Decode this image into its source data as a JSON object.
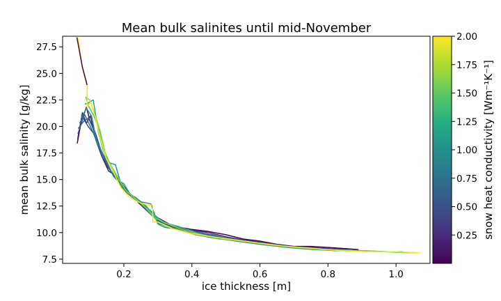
{
  "chart_data": {
    "type": "line",
    "title": "Mean bulk salinites until mid-November",
    "xlabel": "ice thickness [m]",
    "ylabel": "mean bulk salinity [g/kg]",
    "xlim": [
      0.02,
      1.1
    ],
    "ylim": [
      7.1,
      28.5
    ],
    "xticks": [
      0.2,
      0.4,
      0.6,
      0.8,
      1.0
    ],
    "xtick_labels": [
      "0.2",
      "0.4",
      "0.6",
      "0.8",
      "1.0"
    ],
    "yticks": [
      7.5,
      10.0,
      12.5,
      15.0,
      17.5,
      20.0,
      22.5,
      25.0,
      27.5
    ],
    "ytick_labels": [
      "7.5",
      "10.0",
      "12.5",
      "15.0",
      "17.5",
      "20.0",
      "22.5",
      "25.0",
      "27.5"
    ],
    "grid": false,
    "colorbar": {
      "label": "snow heat conductivity [Wm⁻¹K⁻¹]",
      "colormap": "viridis",
      "range": [
        0.0,
        2.0
      ],
      "ticks": [
        0.25,
        0.5,
        0.75,
        1.0,
        1.25,
        1.5,
        1.75,
        2.0
      ],
      "tick_labels": [
        "0.25",
        "0.50",
        "0.75",
        "1.00",
        "1.25",
        "1.50",
        "1.75",
        "2.00"
      ]
    },
    "series": [
      {
        "conductivity": 0.05,
        "color": "#440154",
        "x": [
          0.063,
          0.075,
          0.09,
          0.1,
          0.115,
          0.13,
          0.15,
          0.17,
          0.19,
          0.22,
          0.25,
          0.3,
          0.35,
          0.4,
          0.45,
          0.5,
          0.55,
          0.6,
          0.65,
          0.7,
          0.75,
          0.8,
          0.85,
          0.89
        ],
        "y": [
          18.4,
          20.5,
          21.8,
          20.6,
          19.5,
          18.0,
          16.3,
          15.4,
          14.8,
          13.5,
          12.6,
          11.2,
          10.6,
          10.3,
          10.1,
          9.8,
          9.4,
          9.2,
          8.9,
          8.7,
          8.7,
          8.6,
          8.5,
          8.4
        ]
      },
      {
        "conductivity": 0.15,
        "color": "#482475",
        "x": [
          0.064,
          0.078,
          0.09,
          0.102,
          0.118,
          0.135,
          0.155,
          0.175,
          0.2,
          0.23,
          0.26,
          0.3,
          0.35,
          0.4,
          0.45,
          0.5,
          0.55,
          0.6,
          0.65,
          0.7,
          0.75,
          0.8,
          0.86
        ],
        "y": [
          18.8,
          21.3,
          20.3,
          21.0,
          18.7,
          17.2,
          15.8,
          15.4,
          14.0,
          13.2,
          12.4,
          11.4,
          10.5,
          10.2,
          10.0,
          9.6,
          9.3,
          9.1,
          8.8,
          8.6,
          8.6,
          8.5,
          8.4
        ]
      },
      {
        "conductivity": 0.3,
        "color": "#414487",
        "x": [
          0.065,
          0.08,
          0.095,
          0.11,
          0.125,
          0.14,
          0.16,
          0.18,
          0.2,
          0.23,
          0.26,
          0.3,
          0.35,
          0.4,
          0.45,
          0.5,
          0.55,
          0.6,
          0.65,
          0.7,
          0.76,
          0.82
        ],
        "y": [
          19.3,
          20.8,
          20.0,
          19.4,
          18.2,
          16.8,
          15.9,
          15.0,
          14.2,
          13.3,
          12.3,
          11.1,
          10.4,
          10.0,
          9.7,
          9.5,
          9.2,
          9.0,
          8.8,
          8.6,
          8.5,
          8.4
        ]
      },
      {
        "conductivity": 0.55,
        "color": "#355f8d",
        "x": [
          0.066,
          0.082,
          0.096,
          0.112,
          0.128,
          0.145,
          0.165,
          0.185,
          0.205,
          0.235,
          0.265,
          0.305,
          0.355,
          0.405,
          0.46,
          0.51,
          0.56,
          0.61,
          0.66,
          0.72,
          0.78
        ],
        "y": [
          19.8,
          20.5,
          20.8,
          19.6,
          18.1,
          17.0,
          15.6,
          15.1,
          13.8,
          13.3,
          12.5,
          11.0,
          10.6,
          10.1,
          9.8,
          9.4,
          9.2,
          9.0,
          8.8,
          8.6,
          8.5
        ]
      },
      {
        "conductivity": 0.8,
        "color": "#2a788e",
        "x": [
          0.07,
          0.085,
          0.1,
          0.115,
          0.13,
          0.15,
          0.17,
          0.19,
          0.215,
          0.245,
          0.275,
          0.31,
          0.36,
          0.41,
          0.46,
          0.52,
          0.58,
          0.64,
          0.7,
          0.76,
          0.83,
          0.9,
          0.96
        ],
        "y": [
          20.3,
          21.1,
          20.1,
          19.1,
          17.9,
          16.5,
          15.3,
          14.6,
          13.7,
          12.9,
          12.0,
          11.0,
          10.4,
          10.0,
          9.7,
          9.4,
          9.1,
          8.9,
          8.6,
          8.5,
          8.4,
          8.3,
          8.2
        ]
      },
      {
        "conductivity": 1.1,
        "color": "#21918c",
        "x": [
          0.075,
          0.09,
          0.105,
          0.12,
          0.135,
          0.155,
          0.175,
          0.195,
          0.22,
          0.25,
          0.28,
          0.3,
          0.32,
          0.36,
          0.41,
          0.47,
          0.53,
          0.6,
          0.68,
          0.76,
          0.84,
          0.92,
          0.99
        ],
        "y": [
          20.8,
          21.7,
          21.0,
          18.6,
          17.6,
          16.6,
          16.4,
          14.2,
          13.6,
          12.9,
          12.7,
          10.8,
          10.5,
          10.3,
          9.8,
          9.5,
          9.2,
          8.9,
          8.6,
          8.4,
          8.3,
          8.2,
          8.2
        ]
      },
      {
        "conductivity": 1.35,
        "color": "#22a884",
        "x": [
          0.085,
          0.095,
          0.11,
          0.125,
          0.14,
          0.16,
          0.18,
          0.2,
          0.225,
          0.255,
          0.285,
          0.3,
          0.34,
          0.4,
          0.46,
          0.52,
          0.59,
          0.66,
          0.74,
          0.82,
          0.9,
          0.98,
          1.02
        ],
        "y": [
          22.1,
          22.2,
          22.5,
          19.5,
          17.7,
          16.3,
          15.0,
          14.6,
          13.3,
          12.7,
          11.9,
          10.9,
          10.4,
          9.9,
          9.5,
          9.3,
          9.0,
          8.7,
          8.5,
          8.3,
          8.3,
          8.2,
          8.2
        ]
      },
      {
        "conductivity": 1.6,
        "color": "#44bf70",
        "x": [
          0.088,
          0.098,
          0.112,
          0.128,
          0.145,
          0.165,
          0.185,
          0.205,
          0.23,
          0.26,
          0.29,
          0.32,
          0.36,
          0.42,
          0.48,
          0.55,
          0.62,
          0.7,
          0.78,
          0.86,
          0.94,
          1.0,
          1.04
        ],
        "y": [
          22.8,
          21.8,
          21.0,
          19.6,
          17.5,
          16.1,
          15.0,
          14.0,
          13.3,
          12.5,
          11.6,
          10.9,
          10.6,
          9.9,
          9.4,
          9.2,
          8.9,
          8.6,
          8.4,
          8.3,
          8.2,
          8.2,
          8.1
        ]
      },
      {
        "conductivity": 1.8,
        "color": "#7ad151",
        "x": [
          0.09,
          0.1,
          0.114,
          0.13,
          0.148,
          0.168,
          0.19,
          0.21,
          0.235,
          0.265,
          0.29,
          0.33,
          0.38,
          0.44,
          0.5,
          0.57,
          0.64,
          0.72,
          0.8,
          0.88,
          0.96,
          1.03,
          1.06
        ],
        "y": [
          22.7,
          22.5,
          21.2,
          19.6,
          17.1,
          16.0,
          14.8,
          13.8,
          13.2,
          12.3,
          11.4,
          10.8,
          10.2,
          9.7,
          9.4,
          9.1,
          8.8,
          8.6,
          8.4,
          8.3,
          8.2,
          8.1,
          8.1
        ]
      },
      {
        "conductivity": 2.0,
        "color": "#fde725",
        "x": [
          0.066,
          0.078,
          0.092,
          0.092,
          0.102,
          0.115,
          0.13,
          0.148,
          0.168,
          0.19,
          0.215,
          0.24,
          0.268,
          0.285,
          0.285,
          0.3,
          0.34,
          0.4,
          0.46,
          0.53,
          0.6,
          0.68,
          0.76,
          0.84,
          0.92,
          1.0,
          1.07
        ],
        "y": [
          28.3,
          25.5,
          23.8,
          21.8,
          22.3,
          21.0,
          19.0,
          17.0,
          15.8,
          14.3,
          13.4,
          12.9,
          12.6,
          12.6,
          11.0,
          11.0,
          10.4,
          9.9,
          9.6,
          9.3,
          9.0,
          8.7,
          8.5,
          8.3,
          8.2,
          8.2,
          8.1
        ]
      },
      {
        "conductivity": 0.02,
        "color": "#440154",
        "x": [
          0.062,
          0.078,
          0.092
        ],
        "y": [
          28.4,
          25.6,
          23.9
        ]
      }
    ]
  }
}
